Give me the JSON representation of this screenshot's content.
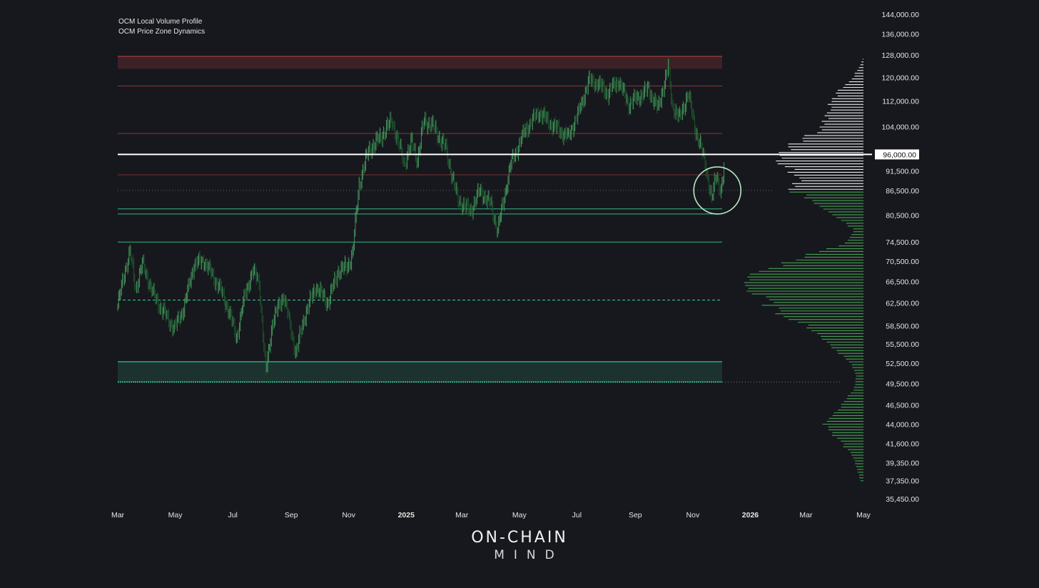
{
  "indicators": {
    "volume_profile": "OCM Local Volume Profile",
    "price_zones": "OCM Price Zone Dynamics"
  },
  "brand": {
    "line1": "ON-CHAIN",
    "line2": "MIND"
  },
  "colors": {
    "background": "#17181d",
    "candle_up": "#4aa164",
    "candle_down": "#1e5a2f",
    "resistance": "#c44848",
    "support": "#36d39a",
    "highlight": "#ffffff",
    "profile_upper": "#e8e8e8",
    "profile_lower": "#43a152"
  },
  "chart_data": {
    "type": "line",
    "title": "",
    "xlabel": "",
    "ylabel": "",
    "x_ticks": [
      {
        "label": "Mar",
        "date": "2024-03-01",
        "bold": false
      },
      {
        "label": "May",
        "date": "2024-05-01",
        "bold": false
      },
      {
        "label": "Jul",
        "date": "2024-07-01",
        "bold": false
      },
      {
        "label": "Sep",
        "date": "2024-09-01",
        "bold": false
      },
      {
        "label": "Nov",
        "date": "2024-11-01",
        "bold": false
      },
      {
        "label": "2025",
        "date": "2025-01-01",
        "bold": true
      },
      {
        "label": "Mar",
        "date": "2025-03-01",
        "bold": false
      },
      {
        "label": "May",
        "date": "2025-05-01",
        "bold": false
      },
      {
        "label": "Jul",
        "date": "2025-07-01",
        "bold": false
      },
      {
        "label": "Sep",
        "date": "2025-09-01",
        "bold": false
      },
      {
        "label": "Nov",
        "date": "2025-11-01",
        "bold": false
      },
      {
        "label": "2026",
        "date": "2026-01-01",
        "bold": true
      },
      {
        "label": "Mar",
        "date": "2026-03-01",
        "bold": false
      },
      {
        "label": "May",
        "date": "2026-05-01",
        "bold": false
      }
    ],
    "y_ticks": [
      "144,000.00",
      "136,000.00",
      "128,000.00",
      "120,000.00",
      "112,000.00",
      "104,000.00",
      "91,500.00",
      "86,500.00",
      "80,500.00",
      "74,500.00",
      "70,500.00",
      "66,500.00",
      "62,500.00",
      "58,500.00",
      "55,500.00",
      "52,500.00",
      "49,500.00",
      "46,500.00",
      "44,000.00",
      "41,600.00",
      "39,350.00",
      "37,350.00",
      "35,450.00"
    ],
    "y_tick_values": [
      144000,
      136000,
      128000,
      120000,
      112000,
      104000,
      91500,
      86500,
      80500,
      74500,
      70500,
      66500,
      62500,
      58500,
      55500,
      52500,
      49500,
      46500,
      44000,
      41600,
      39350,
      37350,
      35450
    ],
    "scale": "log",
    "ylim": [
      35450,
      144000
    ],
    "xlim": [
      "2024-03-01",
      "2026-05-01"
    ],
    "highlight_level": {
      "value": 96000,
      "label": "96,000.00"
    },
    "series": [
      {
        "x": [
          "2024-03-01",
          "2024-03-08",
          "2024-03-14",
          "2024-03-20",
          "2024-03-27",
          "2024-04-08",
          "2024-04-18",
          "2024-04-30",
          "2024-05-10",
          "2024-05-21",
          "2024-06-01",
          "2024-06-07",
          "2024-06-18",
          "2024-06-28",
          "2024-07-05",
          "2024-07-14",
          "2024-07-22",
          "2024-07-29",
          "2024-08-05",
          "2024-08-12",
          "2024-08-24",
          "2024-09-06",
          "2024-09-15",
          "2024-09-27",
          "2024-10-10",
          "2024-10-21",
          "2024-10-31",
          "2024-11-05",
          "2024-11-12",
          "2024-11-22",
          "2024-12-05",
          "2024-12-17",
          "2024-12-30",
          "2025-01-07",
          "2025-01-13",
          "2025-01-20",
          "2025-01-30",
          "2025-02-12",
          "2025-02-25",
          "2025-03-10",
          "2025-03-20",
          "2025-04-01",
          "2025-04-08",
          "2025-04-22",
          "2025-05-08",
          "2025-05-22",
          "2025-06-05",
          "2025-06-22",
          "2025-07-03",
          "2025-07-14",
          "2025-07-25",
          "2025-08-03",
          "2025-08-14",
          "2025-08-25",
          "2025-09-05",
          "2025-09-15",
          "2025-09-25",
          "2025-10-06",
          "2025-10-10",
          "2025-10-18",
          "2025-10-27",
          "2025-11-04",
          "2025-11-14",
          "2025-11-21",
          "2025-11-26",
          "2025-12-01",
          "2025-12-04"
        ],
        "values": [
          62000,
          68000,
          72500,
          65000,
          70000,
          64000,
          61000,
          58000,
          61500,
          70000,
          70500,
          68500,
          65000,
          60500,
          56500,
          64000,
          68500,
          66500,
          51000,
          59000,
          64000,
          54000,
          60000,
          65500,
          62500,
          68500,
          69500,
          72000,
          88000,
          97000,
          101000,
          106000,
          93500,
          99500,
          94500,
          106000,
          104000,
          97500,
          84000,
          81500,
          86500,
          83000,
          77000,
          93500,
          103500,
          108500,
          104500,
          101000,
          108500,
          119000,
          117500,
          114500,
          119000,
          111000,
          113500,
          116000,
          109500,
          123500,
          111000,
          106500,
          114500,
          103000,
          94000,
          84000,
          91000,
          86000,
          92000
        ]
      }
    ],
    "zones": [
      {
        "kind": "resistance_band",
        "from": 123000,
        "to": 127500
      },
      {
        "kind": "resistance",
        "value": 117000
      },
      {
        "kind": "resistance",
        "value": 102000
      },
      {
        "kind": "resistance",
        "value": 90500
      },
      {
        "kind": "support",
        "value": 82000
      },
      {
        "kind": "support",
        "value": 80800
      },
      {
        "kind": "support",
        "value": 74500
      },
      {
        "kind": "support_dashed",
        "value": 63000
      },
      {
        "kind": "support_band",
        "from": 49700,
        "to": 52700
      },
      {
        "kind": "poc_dotted",
        "value": 86500
      }
    ],
    "annotation": {
      "kind": "circle",
      "date": "2025-11-27",
      "value": 86500
    },
    "volume_profile": {
      "price_from": 37200,
      "price_to": 127000,
      "split_price": 86500,
      "anchors": [
        {
          "price": 37200,
          "volume": 0.02
        },
        {
          "price": 40000,
          "volume": 0.08
        },
        {
          "price": 42500,
          "volume": 0.22
        },
        {
          "price": 44000,
          "volume": 0.3
        },
        {
          "price": 46000,
          "volume": 0.18
        },
        {
          "price": 48500,
          "volume": 0.08
        },
        {
          "price": 50500,
          "volume": 0.05
        },
        {
          "price": 53000,
          "volume": 0.12
        },
        {
          "price": 56000,
          "volume": 0.32
        },
        {
          "price": 58500,
          "volume": 0.45
        },
        {
          "price": 61000,
          "volume": 0.68
        },
        {
          "price": 64000,
          "volume": 0.84
        },
        {
          "price": 66500,
          "volume": 0.9
        },
        {
          "price": 69000,
          "volume": 0.72
        },
        {
          "price": 71500,
          "volume": 0.48
        },
        {
          "price": 74000,
          "volume": 0.14
        },
        {
          "price": 77000,
          "volume": 0.07
        },
        {
          "price": 80000,
          "volume": 0.2
        },
        {
          "price": 83000,
          "volume": 0.33
        },
        {
          "price": 86500,
          "volume": 0.55
        },
        {
          "price": 89500,
          "volume": 0.48
        },
        {
          "price": 93000,
          "volume": 0.6
        },
        {
          "price": 96500,
          "volume": 0.65
        },
        {
          "price": 100500,
          "volume": 0.45
        },
        {
          "price": 104000,
          "volume": 0.32
        },
        {
          "price": 108000,
          "volume": 0.28
        },
        {
          "price": 112000,
          "volume": 0.24
        },
        {
          "price": 116000,
          "volume": 0.18
        },
        {
          "price": 120000,
          "volume": 0.08
        },
        {
          "price": 124000,
          "volume": 0.03
        },
        {
          "price": 127000,
          "volume": 0.0
        }
      ]
    }
  }
}
